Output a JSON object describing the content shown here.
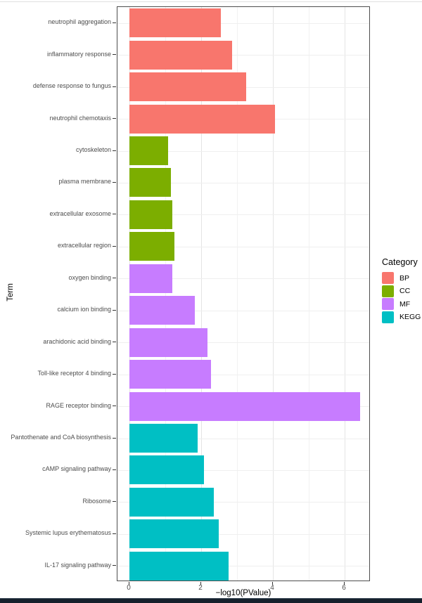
{
  "page": {
    "background": "#ffffff",
    "bottom_bar_color": "#15202c"
  },
  "chart_data": {
    "type": "bar",
    "orientation": "horizontal",
    "title": "",
    "xlabel": "−log10(PValue)",
    "ylabel": "Term",
    "xlim": [
      0,
      6.7
    ],
    "x_ticks": [
      0,
      2,
      4,
      6
    ],
    "grid": "on",
    "legend": {
      "title": "Category",
      "position": "right",
      "entries": [
        {
          "label": "BP",
          "color": "#F8766D"
        },
        {
          "label": "CC",
          "color": "#7CAE00"
        },
        {
          "label": "MF",
          "color": "#C77CFF"
        },
        {
          "label": "KEGG",
          "color": "#00BFC4"
        }
      ]
    },
    "bars": [
      {
        "term": "neutrophil aggregation",
        "category": "BP",
        "value": 2.55
      },
      {
        "term": "inflammatory response",
        "category": "BP",
        "value": 2.86
      },
      {
        "term": "defense response to fungus",
        "category": "BP",
        "value": 3.25
      },
      {
        "term": "neutrophil chemotaxis",
        "category": "BP",
        "value": 4.06
      },
      {
        "term": "cytoskeleton",
        "category": "CC",
        "value": 1.08
      },
      {
        "term": "plasma membrane",
        "category": "CC",
        "value": 1.16
      },
      {
        "term": "extracellular exosome",
        "category": "CC",
        "value": 1.2
      },
      {
        "term": "extracellular region",
        "category": "CC",
        "value": 1.25
      },
      {
        "term": "oxygen binding",
        "category": "MF",
        "value": 1.2
      },
      {
        "term": "calcium ion binding",
        "category": "MF",
        "value": 1.82
      },
      {
        "term": "arachidonic acid binding",
        "category": "MF",
        "value": 2.18
      },
      {
        "term": "Toll-like receptor 4 binding",
        "category": "MF",
        "value": 2.27
      },
      {
        "term": "RAGE receptor binding",
        "category": "MF",
        "value": 6.43
      },
      {
        "term": "Pantothenate and CoA biosynthesis",
        "category": "KEGG",
        "value": 1.9
      },
      {
        "term": "cAMP signaling pathway",
        "category": "KEGG",
        "value": 2.08
      },
      {
        "term": "Ribosome",
        "category": "KEGG",
        "value": 2.35
      },
      {
        "term": "Systemic lupus erythematosus",
        "category": "KEGG",
        "value": 2.49
      },
      {
        "term": "IL-17 signaling pathway",
        "category": "KEGG",
        "value": 2.76
      }
    ]
  }
}
